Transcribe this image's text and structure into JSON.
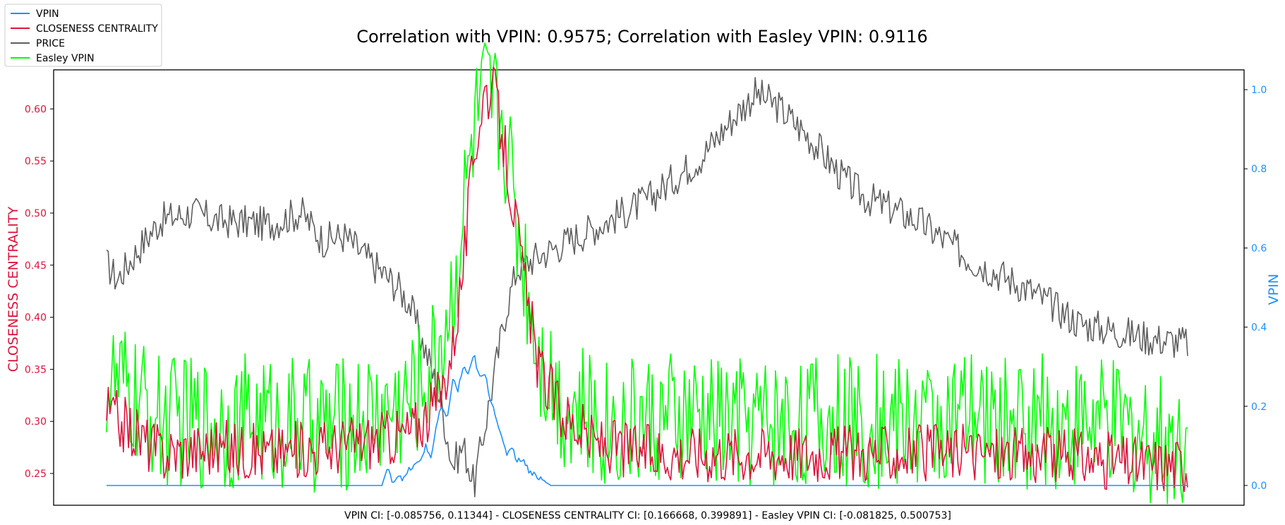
{
  "title": "Correlation with VPIN: 0.9575; Correlation with Easley VPIN: 0.9116",
  "footer": "VPIN CI: [-0.085756, 0.11344] - CLOSENESS CENTRALITY CI: [0.166668, 0.399891] - Easley VPIN CI: [-0.081825, 0.500753]",
  "legend": [
    {
      "label": "VPIN",
      "color": "#1e90ff"
    },
    {
      "label": "CLOSENESS CENTRALITY",
      "color": "#dc143c"
    },
    {
      "label": "PRICE",
      "color": "#5f5f5f"
    },
    {
      "label": "Easley VPIN",
      "color": "#00ff00"
    }
  ],
  "chart_data": {
    "type": "line",
    "title": "Correlation with VPIN: 0.9575; Correlation with Easley VPIN: 0.9116",
    "left_axis": {
      "label": "CLOSENESS CENTRALITY",
      "color": "#dc143c",
      "ylim": [
        0.2195,
        0.6375
      ],
      "ticks": [
        "0.25",
        "0.30",
        "0.35",
        "0.40",
        "0.45",
        "0.50",
        "0.55",
        "0.60"
      ]
    },
    "right_axis": {
      "label": "VPIN",
      "color": "#1e90ff",
      "ylim": [
        -0.05,
        1.05
      ],
      "ticks": [
        "0.0",
        "0.2",
        "0.4",
        "0.6",
        "0.8",
        "1.0"
      ]
    },
    "x_ticks_visible": false,
    "grid": false,
    "legend_position": "outside-top-left",
    "series": [
      {
        "name": "VPIN",
        "axis": "right",
        "color": "#1e90ff",
        "x": [
          0,
          0.2,
          0.255,
          0.258,
          0.26,
          0.263,
          0.266,
          0.27,
          0.275,
          0.28,
          0.285,
          0.29,
          0.295,
          0.3,
          0.305,
          0.31,
          0.315,
          0.32,
          0.325,
          0.33,
          0.335,
          0.34,
          0.345,
          0.35,
          0.355,
          0.36,
          0.365,
          0.37,
          0.375,
          0.38,
          0.385,
          0.39,
          0.395,
          0.4,
          0.405,
          0.41,
          0.5,
          0.6,
          0.7,
          0.8,
          0.9,
          1.0
        ],
        "values": [
          0.0,
          0.0,
          0.0,
          0.03,
          0.04,
          0.02,
          0.01,
          0.03,
          0.015,
          0.04,
          0.05,
          0.06,
          0.1,
          0.07,
          0.15,
          0.2,
          0.16,
          0.27,
          0.24,
          0.3,
          0.28,
          0.33,
          0.27,
          0.28,
          0.22,
          0.18,
          0.12,
          0.08,
          0.1,
          0.06,
          0.07,
          0.04,
          0.03,
          0.02,
          0.01,
          0.0,
          0.0,
          0.0,
          0.0,
          0.0,
          0.0,
          0.0
        ]
      },
      {
        "name": "CLOSENESS CENTRALITY",
        "axis": "left",
        "color": "#dc143c",
        "x": [
          0,
          0.05,
          0.1,
          0.15,
          0.2,
          0.23,
          0.26,
          0.28,
          0.3,
          0.31,
          0.32,
          0.33,
          0.34,
          0.35,
          0.36,
          0.37,
          0.38,
          0.39,
          0.4,
          0.42,
          0.45,
          0.5,
          0.6,
          0.7,
          0.8,
          0.9,
          0.95,
          1.0
        ],
        "values": [
          0.31,
          0.27,
          0.275,
          0.27,
          0.275,
          0.28,
          0.285,
          0.29,
          0.31,
          0.33,
          0.37,
          0.45,
          0.56,
          0.62,
          0.61,
          0.55,
          0.48,
          0.41,
          0.35,
          0.31,
          0.28,
          0.27,
          0.27,
          0.27,
          0.27,
          0.265,
          0.26,
          0.26
        ]
      },
      {
        "name": "PRICE",
        "axis": "right",
        "color": "#5f5f5f",
        "x": [
          0,
          0.01,
          0.03,
          0.05,
          0.08,
          0.1,
          0.15,
          0.18,
          0.2,
          0.22,
          0.25,
          0.27,
          0.28,
          0.3,
          0.31,
          0.32,
          0.33,
          0.34,
          0.35,
          0.37,
          0.38,
          0.4,
          0.45,
          0.5,
          0.55,
          0.58,
          0.6,
          0.62,
          0.65,
          0.68,
          0.7,
          0.75,
          0.8,
          0.85,
          0.9,
          0.95,
          0.97,
          1.0
        ],
        "values": [
          0.56,
          0.52,
          0.6,
          0.67,
          0.69,
          0.67,
          0.66,
          0.69,
          0.62,
          0.63,
          0.55,
          0.5,
          0.46,
          0.3,
          0.2,
          0.05,
          0.1,
          0.0,
          0.15,
          0.45,
          0.55,
          0.58,
          0.65,
          0.72,
          0.83,
          0.93,
          0.99,
          0.96,
          0.88,
          0.78,
          0.73,
          0.67,
          0.57,
          0.5,
          0.41,
          0.38,
          0.37,
          0.36
        ]
      },
      {
        "name": "Easley VPIN",
        "axis": "left",
        "color": "#00ff00",
        "x": [
          0,
          0.05,
          0.1,
          0.15,
          0.2,
          0.23,
          0.26,
          0.28,
          0.3,
          0.31,
          0.32,
          0.33,
          0.34,
          0.35,
          0.36,
          0.37,
          0.38,
          0.39,
          0.4,
          0.42,
          0.45,
          0.5,
          0.6,
          0.7,
          0.8,
          0.9,
          0.95,
          1.0
        ],
        "values": [
          0.34,
          0.3,
          0.3,
          0.3,
          0.295,
          0.3,
          0.31,
          0.32,
          0.35,
          0.38,
          0.42,
          0.5,
          0.58,
          0.61,
          0.6,
          0.57,
          0.49,
          0.43,
          0.37,
          0.32,
          0.3,
          0.3,
          0.3,
          0.3,
          0.3,
          0.3,
          0.29,
          0.28
        ]
      }
    ]
  }
}
